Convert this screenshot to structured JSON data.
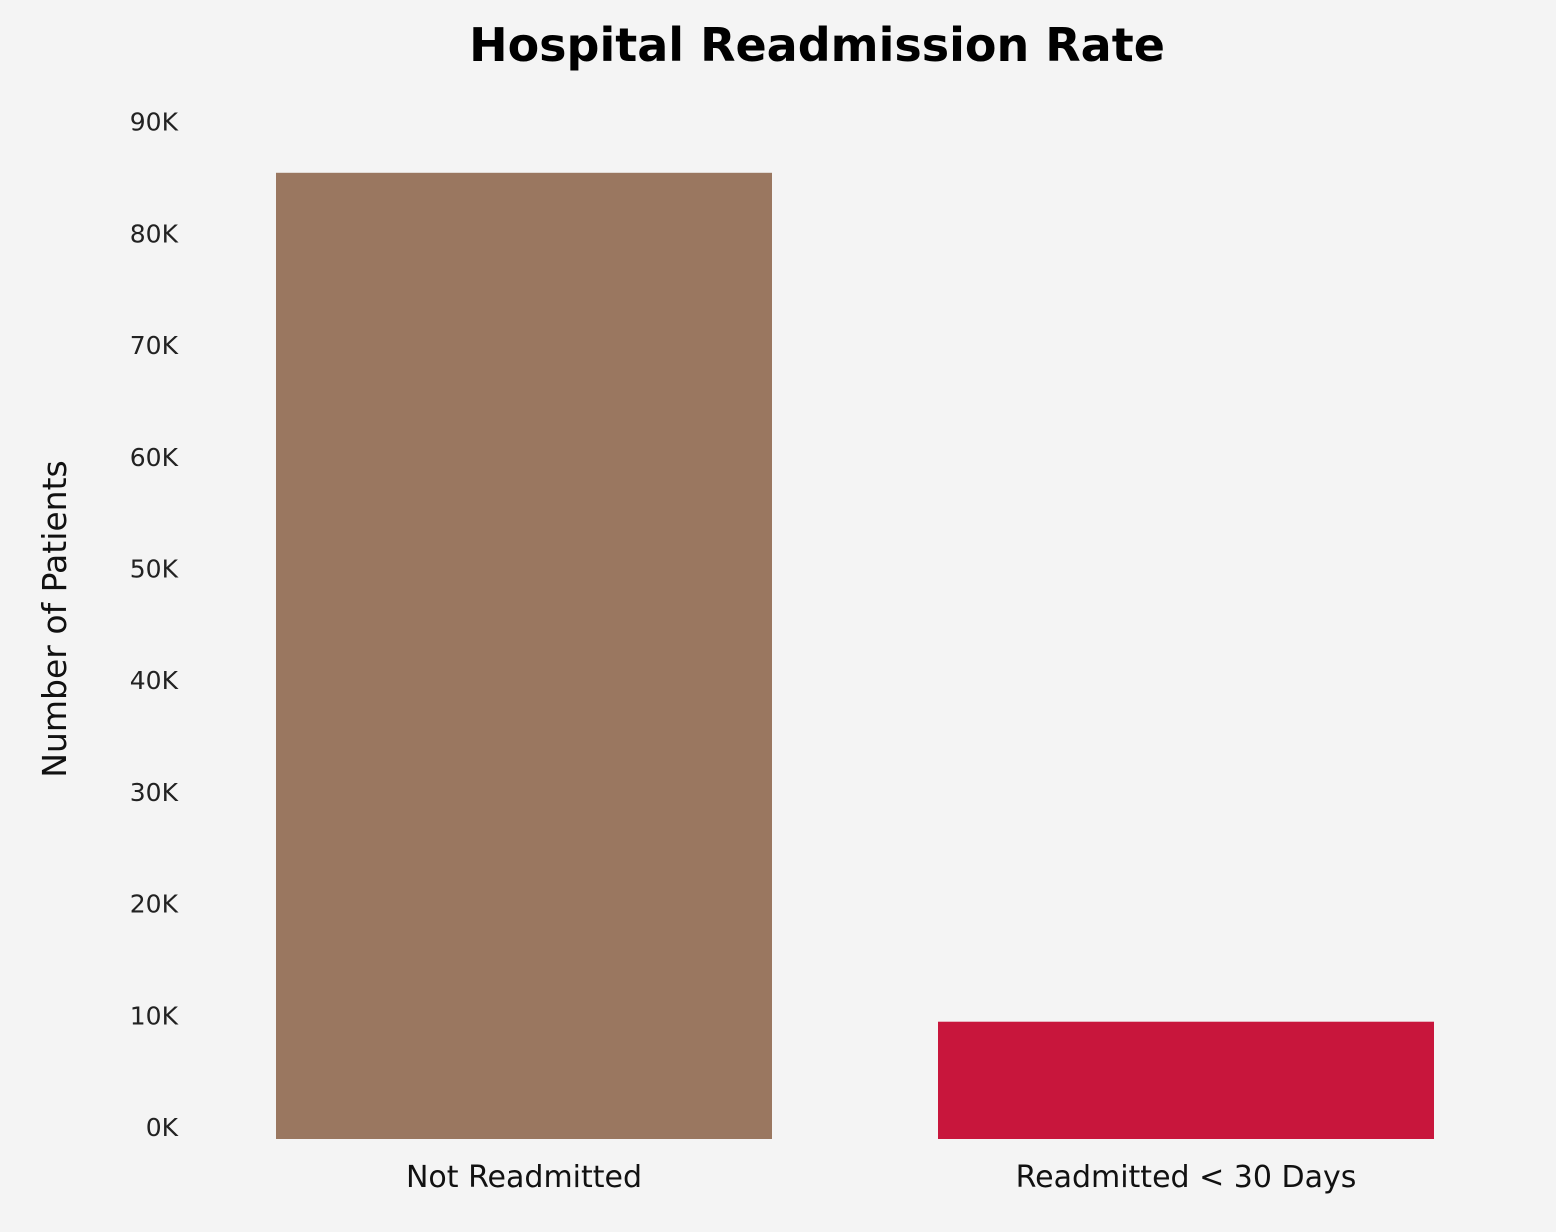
{
  "chart_data": {
    "type": "bar",
    "title": "Hospital Readmission Rate",
    "xlabel": "",
    "ylabel": "Number of Patients",
    "categories": [
      "Not Readmitted",
      "Readmitted < 30 Days"
    ],
    "values": [
      86500,
      10500
    ],
    "bar_colors": [
      "#9a7760",
      "#c8163c"
    ],
    "ylim": [
      0,
      90000
    ],
    "y_ticks": [
      {
        "value": 0,
        "label": "0K"
      },
      {
        "value": 10000,
        "label": "10K"
      },
      {
        "value": 20000,
        "label": "20K"
      },
      {
        "value": 30000,
        "label": "30K"
      },
      {
        "value": 40000,
        "label": "40K"
      },
      {
        "value": 50000,
        "label": "50K"
      },
      {
        "value": 60000,
        "label": "60K"
      },
      {
        "value": 70000,
        "label": "70K"
      },
      {
        "value": 80000,
        "label": "80K"
      },
      {
        "value": 90000,
        "label": "90K"
      }
    ],
    "grid": false,
    "legend": "none",
    "background": "#f4f4f4"
  }
}
